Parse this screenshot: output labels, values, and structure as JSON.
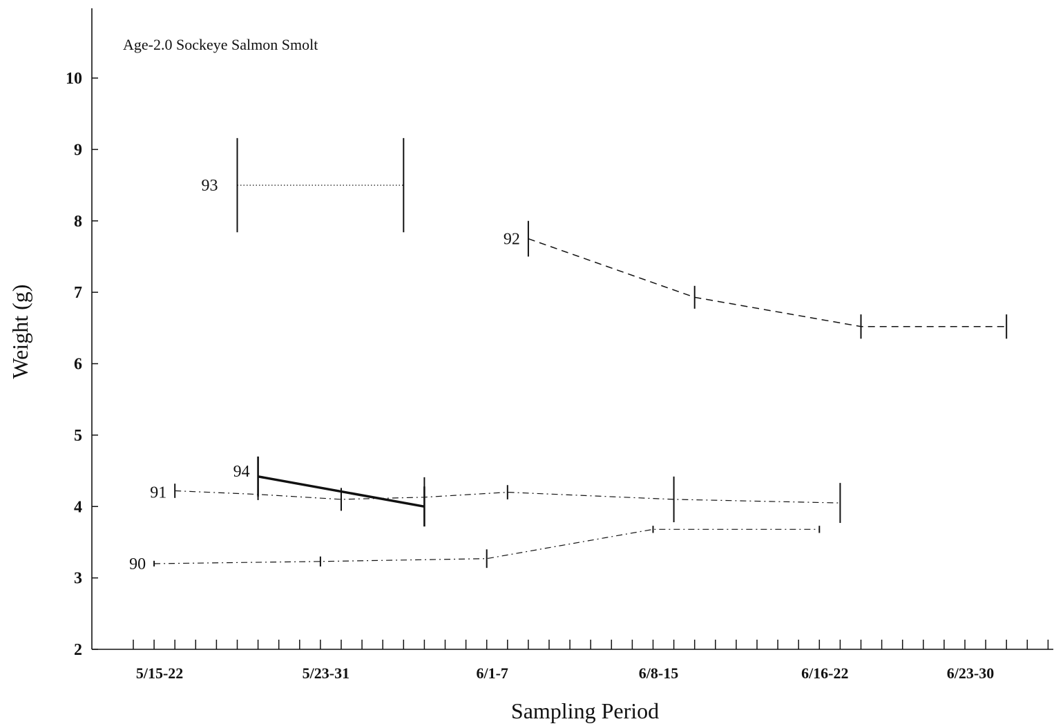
{
  "chart_data": {
    "type": "line",
    "title": "Age-2.0 Sockeye Salmon Smolt",
    "xlabel": "Sampling Period",
    "ylabel": "Weight (g)",
    "ylim": [
      2,
      10
    ],
    "yticks": [
      2,
      3,
      4,
      5,
      6,
      7,
      8,
      9,
      10
    ],
    "categories": [
      "5/15-22",
      "5/23-31",
      "6/1-7",
      "6/8-15",
      "6/16-22",
      "6/23-30"
    ],
    "xlim": [
      0,
      46
    ],
    "x_minor_ticks": 45,
    "x_category_positions": [
      2,
      10,
      18,
      26,
      34,
      41
    ],
    "grid": false,
    "legend": "none",
    "series": [
      {
        "name": "90",
        "style": "dash-dot",
        "width": 1.2,
        "x": [
          2,
          10,
          18,
          26,
          34
        ],
        "values": [
          3.2,
          3.23,
          3.27,
          3.68,
          3.68
        ],
        "err": [
          0.04,
          0.07,
          0.13,
          0.05,
          0.05
        ]
      },
      {
        "name": "91",
        "style": "dash-dot",
        "width": 1.2,
        "x": [
          3,
          7,
          11,
          15,
          19,
          27,
          35
        ],
        "values": [
          4.22,
          4.17,
          4.1,
          4.13,
          4.2,
          4.1,
          4.05
        ],
        "err": [
          0.1,
          0.08,
          0.16,
          0.28,
          0.1,
          0.32,
          0.28
        ]
      },
      {
        "name": "92",
        "style": "dashed",
        "width": 1.5,
        "x": [
          20,
          28,
          36,
          43
        ],
        "values": [
          7.75,
          6.93,
          6.52,
          6.52
        ],
        "err": [
          0.25,
          0.16,
          0.17,
          0.17
        ]
      },
      {
        "name": "93",
        "style": "dotted",
        "width": 1.3,
        "x": [
          6,
          14
        ],
        "values": [
          8.5,
          8.5
        ],
        "err": [
          0.66,
          0.66
        ]
      },
      {
        "name": "94",
        "style": "solid",
        "width": 3.5,
        "x": [
          7,
          15
        ],
        "values": [
          4.42,
          4.0
        ],
        "err": [
          0.28,
          0.28
        ]
      }
    ]
  }
}
